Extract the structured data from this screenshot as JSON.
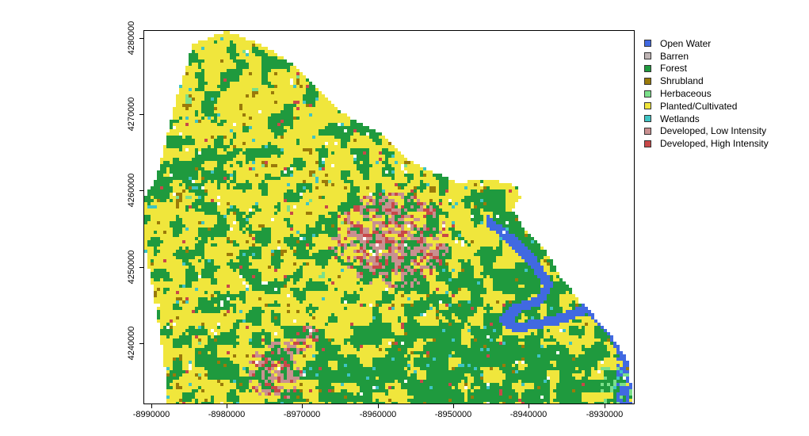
{
  "chart_data": {
    "type": "heatmap",
    "xlim": [
      -8991000,
      -8926000
    ],
    "ylim": [
      4232000,
      4281000
    ],
    "x_ticks": [
      -8990000,
      -8980000,
      -8970000,
      -8960000,
      -8950000,
      -8940000,
      -8930000
    ],
    "y_ticks": [
      4240000,
      4250000,
      4260000,
      4270000,
      4280000
    ],
    "legend_placement": "right",
    "classes": [
      {
        "name": "Open Water",
        "color": "#4169e1"
      },
      {
        "name": "Barren",
        "color": "#bfb5b5"
      },
      {
        "name": "Forest",
        "color": "#1f9a3e"
      },
      {
        "name": "Shrubland",
        "color": "#9a7a0a"
      },
      {
        "name": "Herbaceous",
        "color": "#7be08a"
      },
      {
        "name": "Planted/Cultivated",
        "color": "#f0e63c"
      },
      {
        "name": "Wetlands",
        "color": "#3fc4c4"
      },
      {
        "name": "Developed, Low Intensity",
        "color": "#c99090"
      },
      {
        "name": "Developed, High Intensity",
        "color": "#c84848"
      }
    ]
  }
}
